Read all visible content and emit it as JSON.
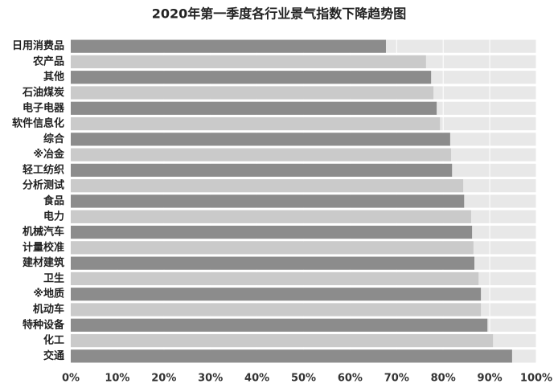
{
  "chart_data": {
    "type": "barh",
    "title": "2020年第一季度各行业景气指数下降趋势图",
    "categories": [
      "日用消费品",
      "农产品",
      "其他",
      "石油煤炭",
      "电子电器",
      "软件信息化",
      "综合",
      "※冶金",
      "轻工纺织",
      "分析测试",
      "食品",
      "电力",
      "机械汽车",
      "计量校准",
      "建材建筑",
      "卫生",
      "※地质",
      "机动车",
      "特种设备",
      "化工",
      "交通"
    ],
    "values": [
      67.7,
      76.3,
      77.4,
      77.9,
      78.6,
      79.3,
      81.5,
      81.7,
      81.9,
      84.3,
      84.5,
      86.0,
      86.2,
      86.5,
      86.7,
      87.6,
      88.1,
      88.1,
      89.5,
      90.7,
      94.8
    ],
    "colors": [
      "#8c8c8c",
      "#cacaca"
    ],
    "xlim": [
      0,
      100
    ],
    "xticks": [
      {
        "value": 0,
        "label": "0%"
      },
      {
        "value": 10,
        "label": "10%"
      },
      {
        "value": 20,
        "label": "20%"
      },
      {
        "value": 30,
        "label": "30%"
      },
      {
        "value": 40,
        "label": "40%"
      },
      {
        "value": 50,
        "label": "50%"
      },
      {
        "value": 60,
        "label": "60%"
      },
      {
        "value": 70,
        "label": "70%"
      },
      {
        "value": 80,
        "label": "80%"
      },
      {
        "value": 90,
        "label": "90%"
      },
      {
        "value": 100,
        "label": "100%"
      }
    ],
    "grid": true
  }
}
